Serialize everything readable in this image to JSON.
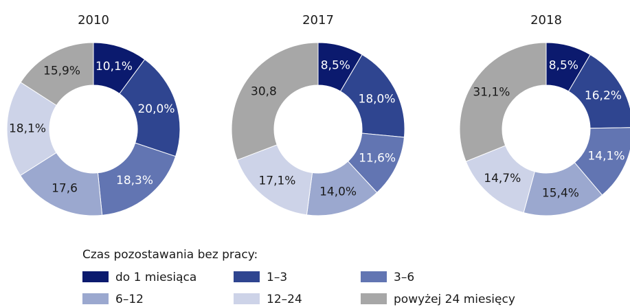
{
  "legend_title": "Czas pozostawania bez pracy:",
  "chart_data": [
    {
      "type": "pie",
      "title": "2010",
      "categories": [
        "do 1 miesiąca",
        "1–3",
        "3–6",
        "6–12",
        "12–24",
        "powyżej 24 miesięcy"
      ],
      "values": [
        10.1,
        20.0,
        18.3,
        17.6,
        18.1,
        15.9
      ],
      "value_labels": [
        "10,1%",
        "20,0%",
        "18,3%",
        "17,6",
        "18,1%",
        "15,9%"
      ],
      "colors": [
        "#0b1a6e",
        "#2f4590",
        "#6275b2",
        "#9ba8cf",
        "#cdd3e8",
        "#a7a7a7"
      ]
    },
    {
      "type": "pie",
      "title": "2017",
      "categories": [
        "do 1 miesiąca",
        "1–3",
        "3–6",
        "6–12",
        "12–24",
        "powyżej 24 miesięcy"
      ],
      "values": [
        8.5,
        18.0,
        11.6,
        14.0,
        17.1,
        30.8
      ],
      "value_labels": [
        "8,5%",
        "18,0%",
        "11,6%",
        "14,0%",
        "17,1%",
        "30,8"
      ],
      "colors": [
        "#0b1a6e",
        "#2f4590",
        "#6275b2",
        "#9ba8cf",
        "#cdd3e8",
        "#a7a7a7"
      ]
    },
    {
      "type": "pie",
      "title": "2018",
      "categories": [
        "do 1 miesiąca",
        "1–3",
        "3–6",
        "6–12",
        "12–24",
        "powyżej 24 miesięcy"
      ],
      "values": [
        8.5,
        16.2,
        14.1,
        15.4,
        14.7,
        31.1
      ],
      "value_labels": [
        "8,5%",
        "16,2%",
        "14,1%",
        "15,4%",
        "14,7%",
        "31,1%"
      ],
      "colors": [
        "#0b1a6e",
        "#2f4590",
        "#6275b2",
        "#9ba8cf",
        "#cdd3e8",
        "#a7a7a7"
      ]
    }
  ]
}
